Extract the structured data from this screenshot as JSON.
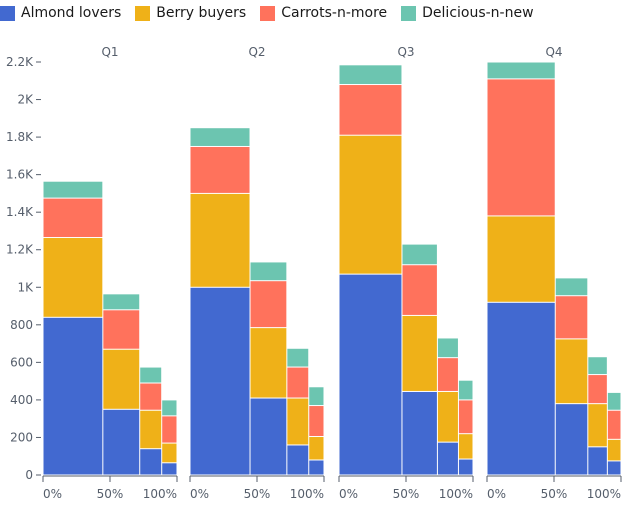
{
  "chart_data": {
    "type": "bar",
    "subtype": "faceted marimekko (stacked, bar width proportional to bar total)",
    "facets": [
      "Q1",
      "Q2",
      "Q3",
      "Q4"
    ],
    "series": [
      {
        "name": "Almond lovers",
        "color": "#4269d0"
      },
      {
        "name": "Berry buyers",
        "color": "#efb118"
      },
      {
        "name": "Carrots-n-more",
        "color": "#ff725c"
      },
      {
        "name": "Delicious-n-new",
        "color": "#6cc5b0"
      }
    ],
    "values": {
      "Q1": [
        [
          840,
          425,
          210,
          90
        ],
        [
          350,
          320,
          210,
          85
        ],
        [
          140,
          205,
          145,
          85
        ],
        [
          65,
          105,
          145,
          85
        ]
      ],
      "Q2": [
        [
          1000,
          500,
          250,
          100
        ],
        [
          410,
          375,
          250,
          100
        ],
        [
          160,
          250,
          165,
          100
        ],
        [
          80,
          125,
          165,
          100
        ]
      ],
      "Q3": [
        [
          1070,
          740,
          270,
          105
        ],
        [
          445,
          405,
          270,
          110
        ],
        [
          175,
          270,
          180,
          105
        ],
        [
          85,
          135,
          180,
          105
        ]
      ],
      "Q4": [
        [
          920,
          460,
          730,
          90
        ],
        [
          380,
          345,
          230,
          95
        ],
        [
          150,
          230,
          155,
          95
        ],
        [
          75,
          115,
          155,
          95
        ]
      ]
    },
    "ylim": [
      0,
      2200
    ],
    "y_ticks": [
      0,
      200,
      400,
      600,
      800,
      1000,
      1200,
      1400,
      1600,
      1800,
      2000,
      2200
    ],
    "y_tick_labels": [
      "0",
      "200",
      "400",
      "600",
      "800",
      "1K",
      "1.2K",
      "1.4K",
      "1.6K",
      "1.8K",
      "2K",
      "2.2K"
    ],
    "x_tick_labels": [
      "0%",
      "50%",
      "100%"
    ],
    "legend_position": "top-left",
    "grid": false
  }
}
